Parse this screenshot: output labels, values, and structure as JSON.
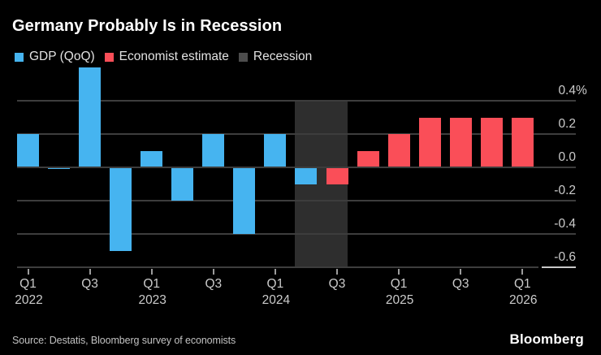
{
  "header": {
    "title": "Germany Probably Is in Recession"
  },
  "legend": {
    "items": [
      {
        "label": "GDP (QoQ)",
        "color": "#46b4f0"
      },
      {
        "label": "Economist estimate",
        "color": "#fa4e58"
      },
      {
        "label": "Recession",
        "color": "#4d4d4d"
      }
    ]
  },
  "chart_data": {
    "type": "bar",
    "title": "Germany Probably Is in Recession",
    "unit": "%",
    "categories": [
      "Q1 2022",
      "Q2 2022",
      "Q3 2022",
      "Q4 2022",
      "Q1 2023",
      "Q2 2023",
      "Q3 2023",
      "Q4 2023",
      "Q1 2024",
      "Q2 2024",
      "Q3 2024",
      "Q4 2024",
      "Q1 2025",
      "Q2 2025",
      "Q3 2025",
      "Q4 2025",
      "Q1 2026"
    ],
    "series": [
      {
        "name": "GDP (QoQ)",
        "color": "#46b4f0",
        "values": [
          0.2,
          -0.01,
          0.6,
          -0.5,
          0.1,
          -0.2,
          0.2,
          -0.4,
          0.2,
          -0.1,
          null,
          null,
          null,
          null,
          null,
          null,
          null
        ]
      },
      {
        "name": "Economist estimate",
        "color": "#fa4e58",
        "values": [
          null,
          null,
          null,
          null,
          null,
          null,
          null,
          null,
          null,
          null,
          -0.1,
          0.1,
          0.2,
          0.3,
          0.3,
          0.3,
          0.3
        ]
      }
    ],
    "recession_band": {
      "label": "Recession",
      "from": "Q2 2024",
      "to": "Q3 2024",
      "color": "#2e2e2e"
    },
    "ylim": [
      -0.6,
      0.6
    ],
    "grid": true,
    "legend_position": "top",
    "y_ticks": [
      {
        "label": "0.4",
        "suffix": "%",
        "value": 0.4
      },
      {
        "label": "0.2",
        "value": 0.2
      },
      {
        "label": "0.0",
        "value": 0.0
      },
      {
        "label": "-0.2",
        "value": -0.2
      },
      {
        "label": "-0.4",
        "value": -0.4
      },
      {
        "label": "-0.6",
        "value": -0.6
      }
    ],
    "x_ticks": [
      {
        "index": 0,
        "quarter": "Q1",
        "year": "2022"
      },
      {
        "index": 2,
        "quarter": "Q3"
      },
      {
        "index": 4,
        "quarter": "Q1",
        "year": "2023"
      },
      {
        "index": 6,
        "quarter": "Q3"
      },
      {
        "index": 8,
        "quarter": "Q1",
        "year": "2024"
      },
      {
        "index": 10,
        "quarter": "Q3"
      },
      {
        "index": 12,
        "quarter": "Q1",
        "year": "2025"
      },
      {
        "index": 14,
        "quarter": "Q3"
      },
      {
        "index": 16,
        "quarter": "Q1",
        "year": "2026"
      }
    ]
  },
  "footer": {
    "source": "Source: Destatis, Bloomberg survey of economists",
    "brand": "Bloomberg"
  }
}
